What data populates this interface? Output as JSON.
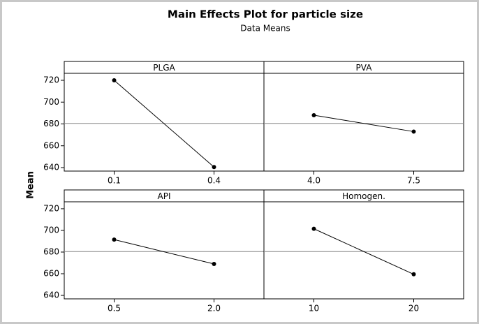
{
  "title": "Main Effects Plot for particle size",
  "subtitle": "Data Means",
  "ylabel": "Mean",
  "reference_line": 680.5,
  "chart_data": [
    {
      "type": "line",
      "title": "PLGA",
      "categories": [
        "0.1",
        "0.4"
      ],
      "values": [
        720,
        640.5
      ],
      "ylim": [
        636.8,
        726.4
      ],
      "yticks": [
        640,
        660,
        680,
        700,
        720
      ]
    },
    {
      "type": "line",
      "title": "PVA",
      "categories": [
        "4.0",
        "7.5"
      ],
      "values": [
        688,
        673
      ],
      "ylim": [
        636.8,
        726.4
      ],
      "yticks": [
        640,
        660,
        680,
        700,
        720
      ]
    },
    {
      "type": "line",
      "title": "API",
      "categories": [
        "0.5",
        "2.0"
      ],
      "values": [
        691.5,
        669
      ],
      "ylim": [
        636.8,
        726.4
      ],
      "yticks": [
        640,
        660,
        680,
        700,
        720
      ]
    },
    {
      "type": "line",
      "title": "Homogen.",
      "categories": [
        "10",
        "20"
      ],
      "values": [
        701.5,
        659.5
      ],
      "ylim": [
        636.8,
        726.4
      ],
      "yticks": [
        640,
        660,
        680,
        700,
        720
      ]
    }
  ]
}
